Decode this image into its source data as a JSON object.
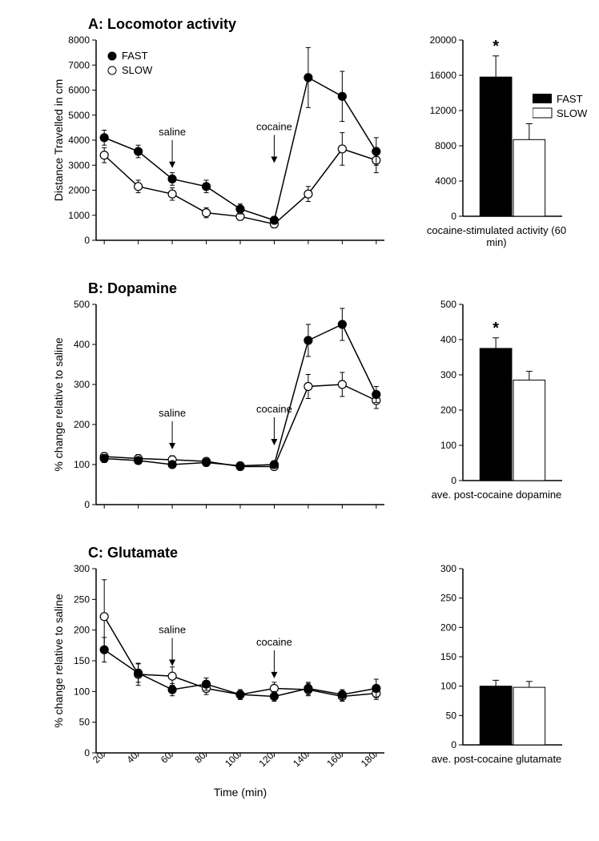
{
  "global": {
    "background_color": "#ffffff",
    "axis_color": "#000000",
    "fast_marker_fill": "#000000",
    "slow_marker_fill": "#ffffff",
    "marker_stroke": "#000000",
    "line_color": "#000000",
    "error_bar_color": "#000000",
    "font_family": "Arial",
    "x_ticks": [
      20,
      40,
      60,
      80,
      100,
      120,
      140,
      160,
      180
    ],
    "x_label": "Time (min)",
    "legend_fast": "FAST",
    "legend_slow": "SLOW",
    "bar_legend_fast": "FAST",
    "bar_legend_slow": "SLOW",
    "arrow_saline_label": "saline",
    "arrow_cocaine_label": "cocaine",
    "arrow_saline_x": 60,
    "arrow_cocaine_x": 120
  },
  "panelA": {
    "title": "A: Locomotor activity",
    "title_fontsize": 18,
    "y_label": "Distance Travelled in cm",
    "y_ticks": [
      0,
      1000,
      2000,
      3000,
      4000,
      5000,
      6000,
      7000,
      8000
    ],
    "ylim": [
      0,
      8000
    ],
    "fast": {
      "x": [
        20,
        40,
        60,
        80,
        100,
        120,
        140,
        160,
        180
      ],
      "y": [
        4100,
        3550,
        2450,
        2150,
        1250,
        800,
        6500,
        5750,
        3550
      ],
      "err": [
        300,
        250,
        250,
        250,
        200,
        150,
        1200,
        1000,
        550
      ]
    },
    "slow": {
      "x": [
        20,
        40,
        60,
        80,
        100,
        120,
        140,
        160,
        180
      ],
      "y": [
        3400,
        2150,
        1850,
        1100,
        950,
        650,
        1850,
        3650,
        3200
      ],
      "err": [
        300,
        250,
        250,
        200,
        150,
        150,
        300,
        650,
        500
      ]
    },
    "bar": {
      "y_ticks": [
        0,
        4000,
        8000,
        12000,
        16000,
        20000
      ],
      "ylim": [
        0,
        20000
      ],
      "fast_val": 15800,
      "fast_err": 2400,
      "slow_val": 8700,
      "slow_err": 1800,
      "caption": "cocaine-stimulated activity (60 min)",
      "star": "*"
    }
  },
  "panelB": {
    "title": "B: Dopamine",
    "title_fontsize": 18,
    "y_label": "% change relative to saline",
    "y_ticks": [
      0,
      100,
      200,
      300,
      400,
      500
    ],
    "ylim": [
      0,
      500
    ],
    "fast": {
      "x": [
        20,
        40,
        60,
        80,
        100,
        120,
        140,
        160,
        180
      ],
      "y": [
        115,
        110,
        100,
        105,
        97,
        100,
        410,
        450,
        275
      ],
      "err": [
        10,
        8,
        8,
        8,
        6,
        6,
        40,
        40,
        20
      ]
    },
    "slow": {
      "x": [
        20,
        40,
        60,
        80,
        100,
        120,
        140,
        160,
        180
      ],
      "y": [
        120,
        115,
        112,
        108,
        95,
        95,
        295,
        300,
        260
      ],
      "err": [
        10,
        10,
        10,
        8,
        6,
        6,
        30,
        30,
        20
      ]
    },
    "bar": {
      "y_ticks": [
        0,
        100,
        200,
        300,
        400,
        500
      ],
      "ylim": [
        0,
        500
      ],
      "fast_val": 375,
      "fast_err": 30,
      "slow_val": 285,
      "slow_err": 25,
      "caption": "ave. post-cocaine dopamine",
      "star": "*"
    }
  },
  "panelC": {
    "title": "C: Glutamate",
    "title_fontsize": 18,
    "y_label": "% change relative to saline",
    "y_ticks": [
      0,
      50,
      100,
      150,
      200,
      250,
      300
    ],
    "ylim": [
      0,
      300
    ],
    "fast": {
      "x": [
        20,
        40,
        60,
        80,
        100,
        120,
        140,
        160,
        180
      ],
      "y": [
        168,
        130,
        103,
        112,
        95,
        92,
        105,
        95,
        105
      ],
      "err": [
        20,
        15,
        10,
        10,
        8,
        8,
        10,
        8,
        15
      ]
    },
    "slow": {
      "x": [
        20,
        40,
        60,
        80,
        100,
        120,
        140,
        160,
        180
      ],
      "y": [
        222,
        128,
        125,
        105,
        95,
        105,
        103,
        92,
        97
      ],
      "err": [
        60,
        18,
        15,
        10,
        8,
        10,
        10,
        8,
        10
      ]
    },
    "bar": {
      "y_ticks": [
        0,
        50,
        100,
        150,
        200,
        250,
        300
      ],
      "ylim": [
        0,
        300
      ],
      "fast_val": 100,
      "fast_err": 10,
      "slow_val": 98,
      "slow_err": 10,
      "caption": "ave. post-cocaine glutamate",
      "star": ""
    }
  }
}
